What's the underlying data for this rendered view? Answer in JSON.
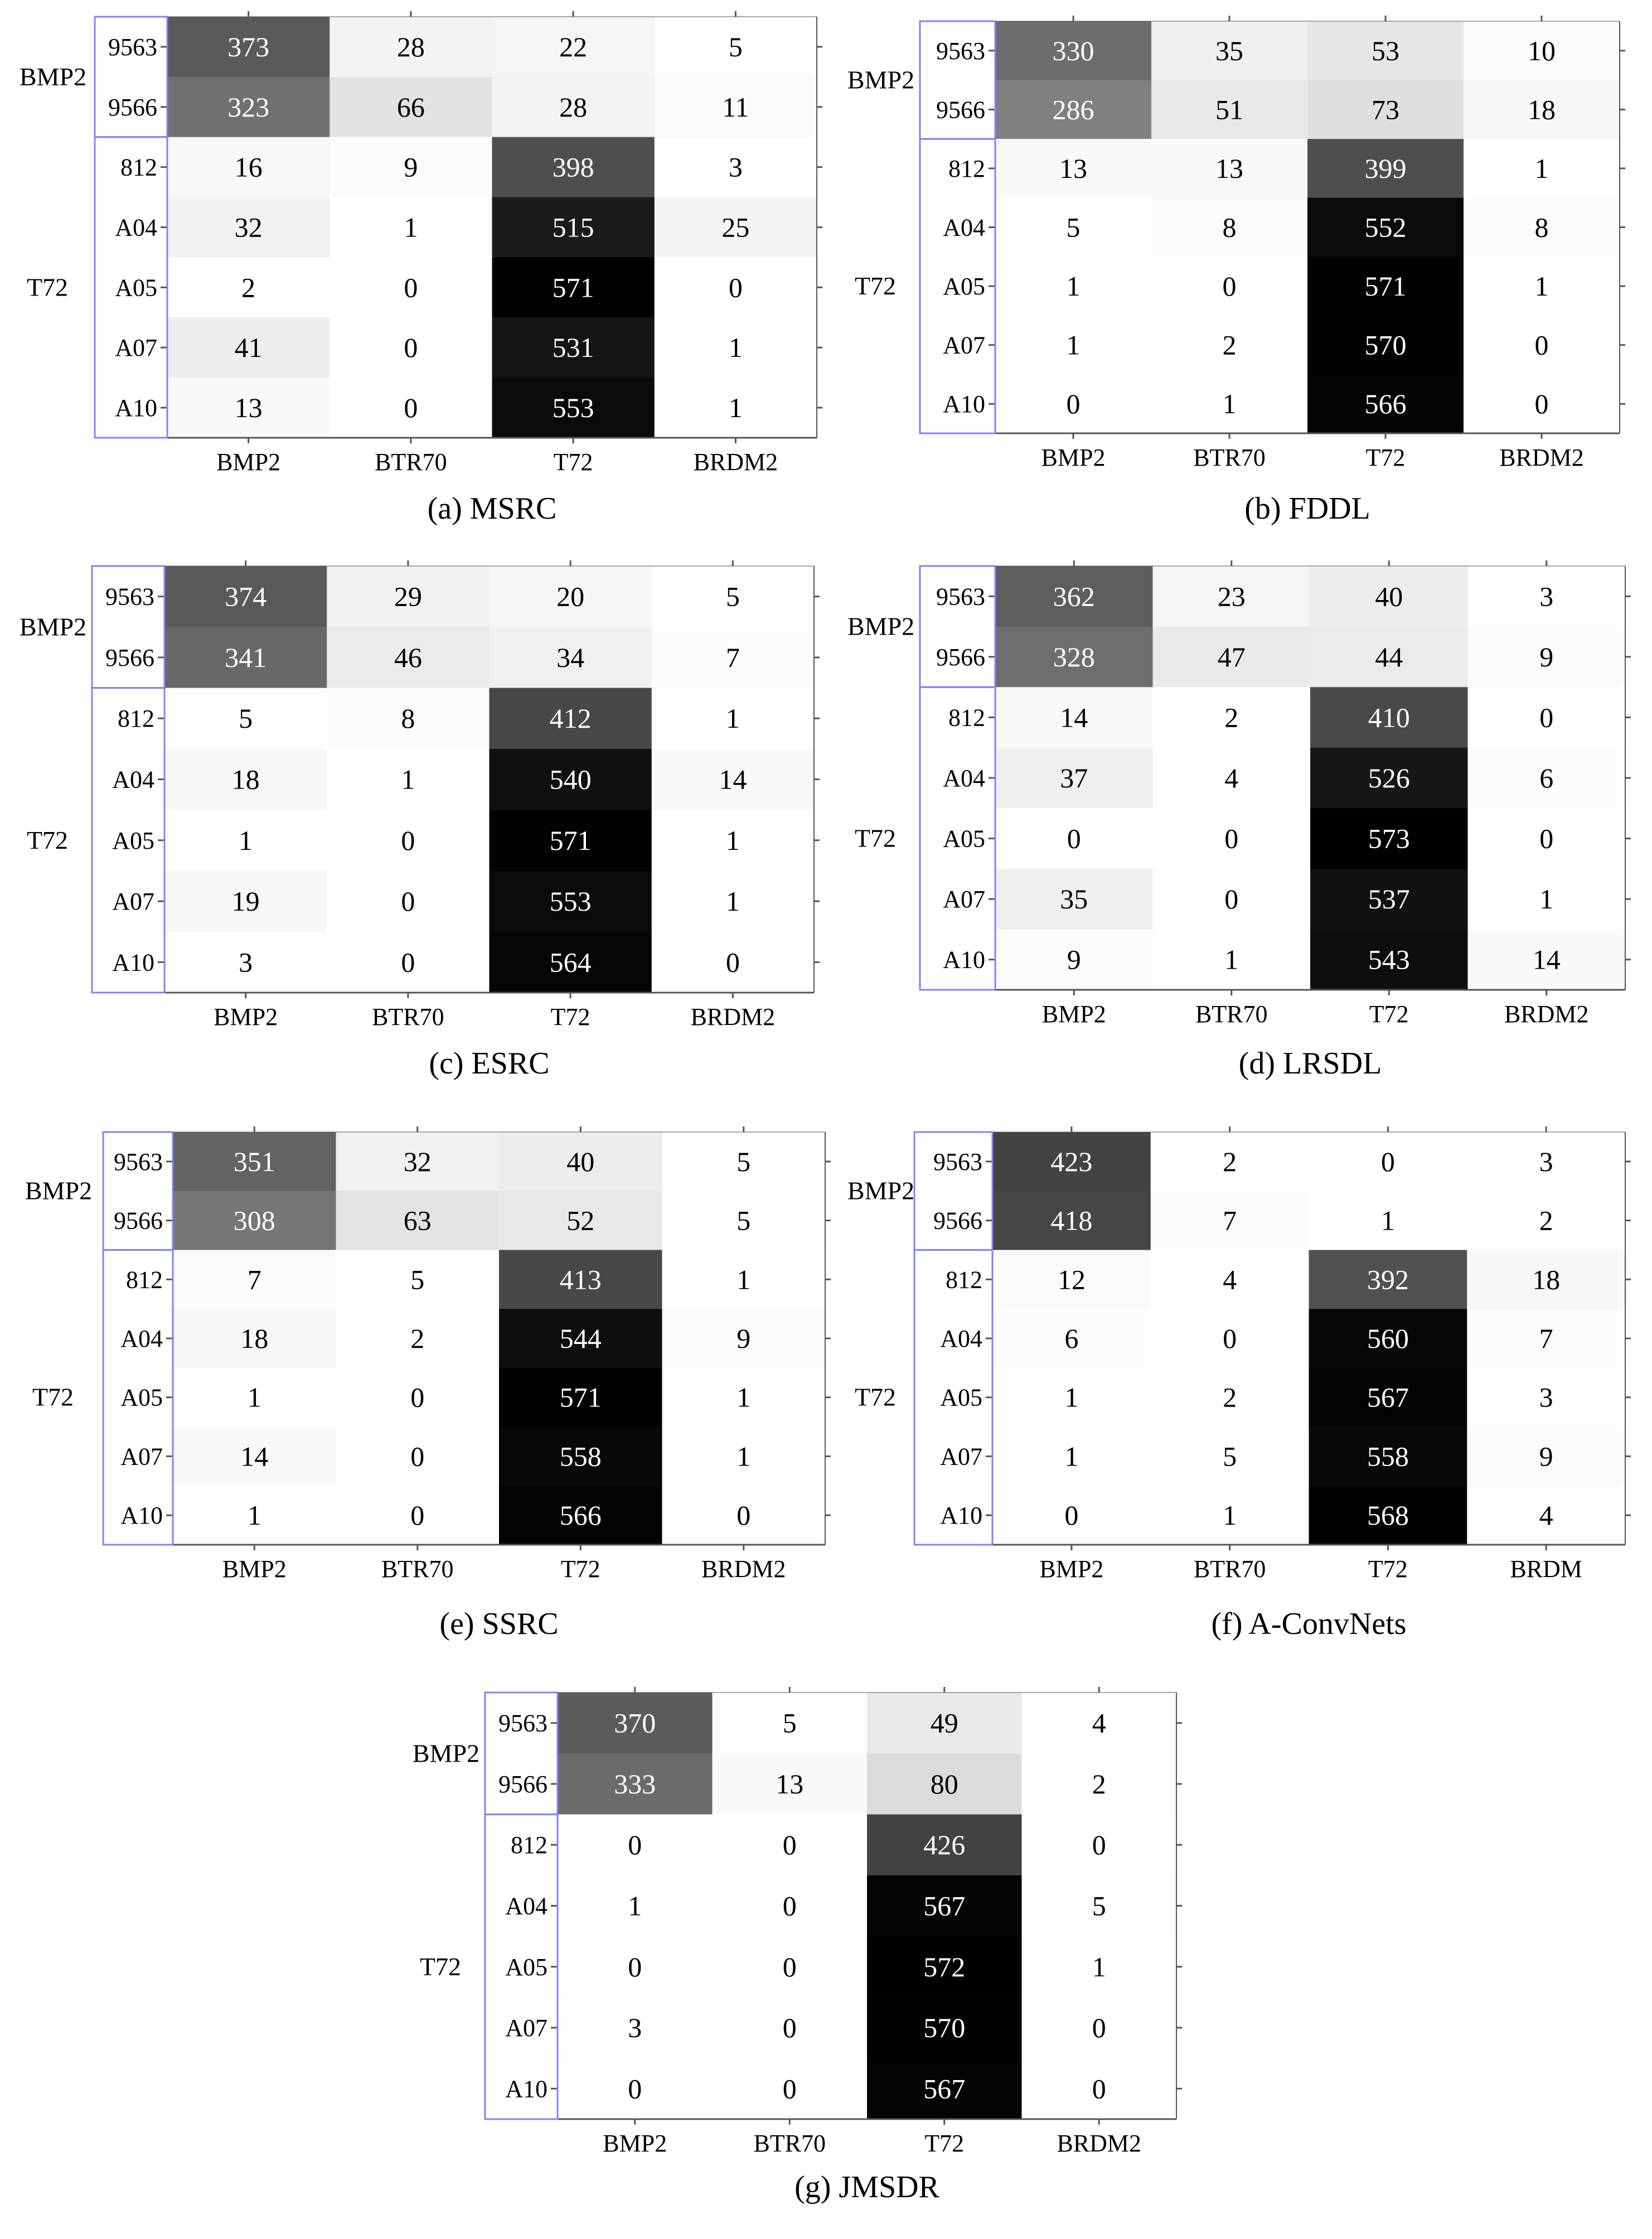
{
  "figure": {
    "row_group_labels": [
      "BMP2",
      "T72"
    ],
    "row_labels": [
      "9563",
      "9566",
      "812",
      "A04",
      "A05",
      "A07",
      "A10"
    ],
    "colors": {
      "box": "#8080ff",
      "axis": "#555555",
      "text_dark": "#000000",
      "text_light": "#ffffff"
    }
  },
  "chart_data": [
    {
      "type": "heatmap",
      "caption": "(a) MSRC",
      "row_groups": [
        "BMP2",
        "T72"
      ],
      "rows": [
        "9563",
        "9566",
        "812",
        "A04",
        "A05",
        "A07",
        "A10"
      ],
      "cols": [
        "BMP2",
        "BTR70",
        "T72",
        "BRDM2"
      ],
      "values": [
        [
          373,
          28,
          22,
          5
        ],
        [
          323,
          66,
          28,
          11
        ],
        [
          16,
          9,
          398,
          3
        ],
        [
          32,
          1,
          515,
          25
        ],
        [
          2,
          0,
          571,
          0
        ],
        [
          41,
          0,
          531,
          1
        ],
        [
          13,
          0,
          553,
          1
        ]
      ]
    },
    {
      "type": "heatmap",
      "caption": "(b) FDDL",
      "row_groups": [
        "BMP2",
        "T72"
      ],
      "rows": [
        "9563",
        "9566",
        "812",
        "A04",
        "A05",
        "A07",
        "A10"
      ],
      "cols": [
        "BMP2",
        "BTR70",
        "T72",
        "BRDM2"
      ],
      "values": [
        [
          330,
          35,
          53,
          10
        ],
        [
          286,
          51,
          73,
          18
        ],
        [
          13,
          13,
          399,
          1
        ],
        [
          5,
          8,
          552,
          8
        ],
        [
          1,
          0,
          571,
          1
        ],
        [
          1,
          2,
          570,
          0
        ],
        [
          0,
          1,
          566,
          0
        ]
      ]
    },
    {
      "type": "heatmap",
      "caption": "(c) ESRC",
      "row_groups": [
        "BMP2",
        "T72"
      ],
      "rows": [
        "9563",
        "9566",
        "812",
        "A04",
        "A05",
        "A07",
        "A10"
      ],
      "cols": [
        "BMP2",
        "BTR70",
        "T72",
        "BRDM2"
      ],
      "values": [
        [
          374,
          29,
          20,
          5
        ],
        [
          341,
          46,
          34,
          7
        ],
        [
          5,
          8,
          412,
          1
        ],
        [
          18,
          1,
          540,
          14
        ],
        [
          1,
          0,
          571,
          1
        ],
        [
          19,
          0,
          553,
          1
        ],
        [
          3,
          0,
          564,
          0
        ]
      ]
    },
    {
      "type": "heatmap",
      "caption": "(d) LRSDL",
      "row_groups": [
        "BMP2",
        "T72"
      ],
      "rows": [
        "9563",
        "9566",
        "812",
        "A04",
        "A05",
        "A07",
        "A10"
      ],
      "cols": [
        "BMP2",
        "BTR70",
        "T72",
        "BRDM2"
      ],
      "values": [
        [
          362,
          23,
          40,
          3
        ],
        [
          328,
          47,
          44,
          9
        ],
        [
          14,
          2,
          410,
          0
        ],
        [
          37,
          4,
          526,
          6
        ],
        [
          0,
          0,
          573,
          0
        ],
        [
          35,
          0,
          537,
          1
        ],
        [
          9,
          1,
          543,
          14
        ]
      ]
    },
    {
      "type": "heatmap",
      "caption": "(e) SSRC",
      "row_groups": [
        "BMP2",
        "T72"
      ],
      "rows": [
        "9563",
        "9566",
        "812",
        "A04",
        "A05",
        "A07",
        "A10"
      ],
      "cols": [
        "BMP2",
        "BTR70",
        "T72",
        "BRDM2"
      ],
      "values": [
        [
          351,
          32,
          40,
          5
        ],
        [
          308,
          63,
          52,
          5
        ],
        [
          7,
          5,
          413,
          1
        ],
        [
          18,
          2,
          544,
          9
        ],
        [
          1,
          0,
          571,
          1
        ],
        [
          14,
          0,
          558,
          1
        ],
        [
          1,
          0,
          566,
          0
        ]
      ]
    },
    {
      "type": "heatmap",
      "caption": "(f) A-ConvNets",
      "row_groups": [
        "BMP2",
        "T72"
      ],
      "rows": [
        "9563",
        "9566",
        "812",
        "A04",
        "A05",
        "A07",
        "A10"
      ],
      "cols": [
        "BMP2",
        "BTR70",
        "T72",
        "BRDM"
      ],
      "values": [
        [
          423,
          2,
          0,
          3
        ],
        [
          418,
          7,
          1,
          2
        ],
        [
          12,
          4,
          392,
          18
        ],
        [
          6,
          0,
          560,
          7
        ],
        [
          1,
          2,
          567,
          3
        ],
        [
          1,
          5,
          558,
          9
        ],
        [
          0,
          1,
          568,
          4
        ]
      ]
    },
    {
      "type": "heatmap",
      "caption": "(g) JMSDR",
      "row_groups": [
        "BMP2",
        "T72"
      ],
      "rows": [
        "9563",
        "9566",
        "812",
        "A04",
        "A05",
        "A07",
        "A10"
      ],
      "cols": [
        "BMP2",
        "BTR70",
        "T72",
        "BRDM2"
      ],
      "values": [
        [
          370,
          5,
          49,
          4
        ],
        [
          333,
          13,
          80,
          2
        ],
        [
          0,
          0,
          426,
          0
        ],
        [
          1,
          0,
          567,
          5
        ],
        [
          0,
          0,
          572,
          1
        ],
        [
          3,
          0,
          570,
          0
        ],
        [
          0,
          0,
          567,
          0
        ]
      ]
    }
  ]
}
